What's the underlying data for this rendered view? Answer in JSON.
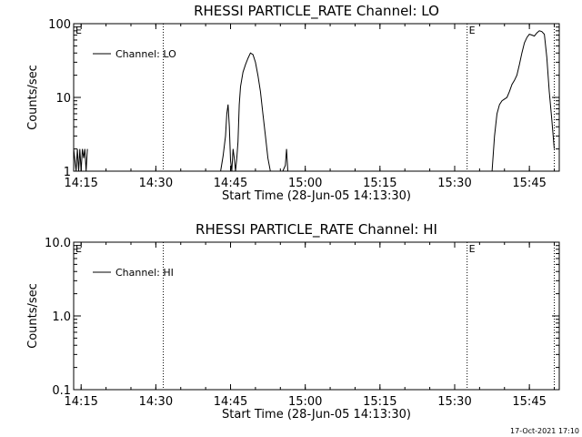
{
  "footer_timestamp": "17-Oct-2021 17:10",
  "chart_data": [
    {
      "type": "line",
      "title": "RHESSI PARTICLE_RATE Channel: LO",
      "xlabel": "Start Time (28-Jun-05 14:13:30)",
      "ylabel": "Counts/sec",
      "yscale": "log",
      "ylim": [
        1,
        100
      ],
      "xlim": [
        "14:13:30",
        "15:51:00"
      ],
      "x_ticks": [
        "14:15",
        "14:30",
        "14:45",
        "15:00",
        "15:15",
        "15:30",
        "15:45"
      ],
      "y_ticks": [
        "1",
        "10",
        "100"
      ],
      "grid": false,
      "legend_position": "top-left",
      "legend": [
        "Channel: LO"
      ],
      "markers": [
        {
          "label": "E",
          "time": "14:13:30",
          "line": false
        },
        {
          "label": "",
          "time": "14:31:30",
          "line": true
        },
        {
          "label": "E",
          "time": "15:32:30",
          "line": true
        },
        {
          "label": "",
          "time": "15:50:00",
          "line": true
        }
      ],
      "series": [
        {
          "name": "Channel: LO",
          "x": [
            "14:13:30",
            "14:14:00",
            "14:14:15",
            "14:14:30",
            "14:14:45",
            "14:15:00",
            "14:15:15",
            "14:15:30",
            "14:15:45",
            "14:16:00",
            "14:16:15",
            "14:43:00",
            "14:43:30",
            "14:44:00",
            "14:44:15",
            "14:44:30",
            "14:44:45",
            "14:45:00",
            "14:45:15",
            "14:45:30",
            "14:45:45",
            "14:46:00",
            "14:46:15",
            "14:46:30",
            "14:46:45",
            "14:47:00",
            "14:47:30",
            "14:48:00",
            "14:48:30",
            "14:49:00",
            "14:49:30",
            "14:50:00",
            "14:50:30",
            "14:51:00",
            "14:51:30",
            "14:52:00",
            "14:52:30",
            "14:53:00",
            "14:53:30",
            "14:54:00",
            "14:54:30",
            "14:55:00",
            "14:55:30",
            "14:56:00",
            "14:56:15",
            "14:56:30",
            "15:37:30",
            "15:38:00",
            "15:38:30",
            "15:39:00",
            "15:39:30",
            "15:40:00",
            "15:40:30",
            "15:41:00",
            "15:41:30",
            "15:42:00",
            "15:42:30",
            "15:43:00",
            "15:43:30",
            "15:44:00",
            "15:44:30",
            "15:45:00",
            "15:45:30",
            "15:46:00",
            "15:46:30",
            "15:47:00",
            "15:47:30",
            "15:48:00",
            "15:48:30",
            "15:49:00",
            "15:49:30",
            "15:50:00"
          ],
          "y": [
            2,
            1,
            2,
            1,
            2,
            1,
            2,
            1.5,
            2,
            1,
            2,
            1,
            1.6,
            3,
            6,
            8,
            4,
            1.4,
            1,
            2,
            1.5,
            1,
            1.5,
            2.5,
            8,
            14,
            22,
            28,
            34,
            40,
            38,
            30,
            20,
            12,
            6,
            3,
            1.5,
            1,
            1,
            1,
            1,
            1,
            1,
            1.2,
            2,
            1,
            1,
            3,
            6,
            8,
            9,
            9.5,
            10,
            12,
            15,
            17,
            20,
            28,
            40,
            55,
            65,
            72,
            70,
            68,
            75,
            80,
            78,
            72,
            35,
            12,
            5,
            2
          ]
        }
      ]
    },
    {
      "type": "line",
      "title": "RHESSI PARTICLE_RATE Channel: HI",
      "xlabel": "Start Time (28-Jun-05 14:13:30)",
      "ylabel": "Counts/sec",
      "yscale": "log",
      "ylim": [
        0.1,
        10
      ],
      "xlim": [
        "14:13:30",
        "15:51:00"
      ],
      "x_ticks": [
        "14:15",
        "14:30",
        "14:45",
        "15:00",
        "15:15",
        "15:30",
        "15:45"
      ],
      "y_ticks": [
        "0.1",
        "1.0",
        "10.0"
      ],
      "grid": false,
      "legend_position": "top-left",
      "legend": [
        "Channel: HI"
      ],
      "markers": [
        {
          "label": "E",
          "time": "14:13:30",
          "line": false
        },
        {
          "label": "",
          "time": "14:31:30",
          "line": true
        },
        {
          "label": "E",
          "time": "15:32:30",
          "line": true
        },
        {
          "label": "",
          "time": "15:50:00",
          "line": true
        }
      ],
      "series": [
        {
          "name": "Channel: HI",
          "x": [],
          "y": []
        }
      ]
    }
  ]
}
